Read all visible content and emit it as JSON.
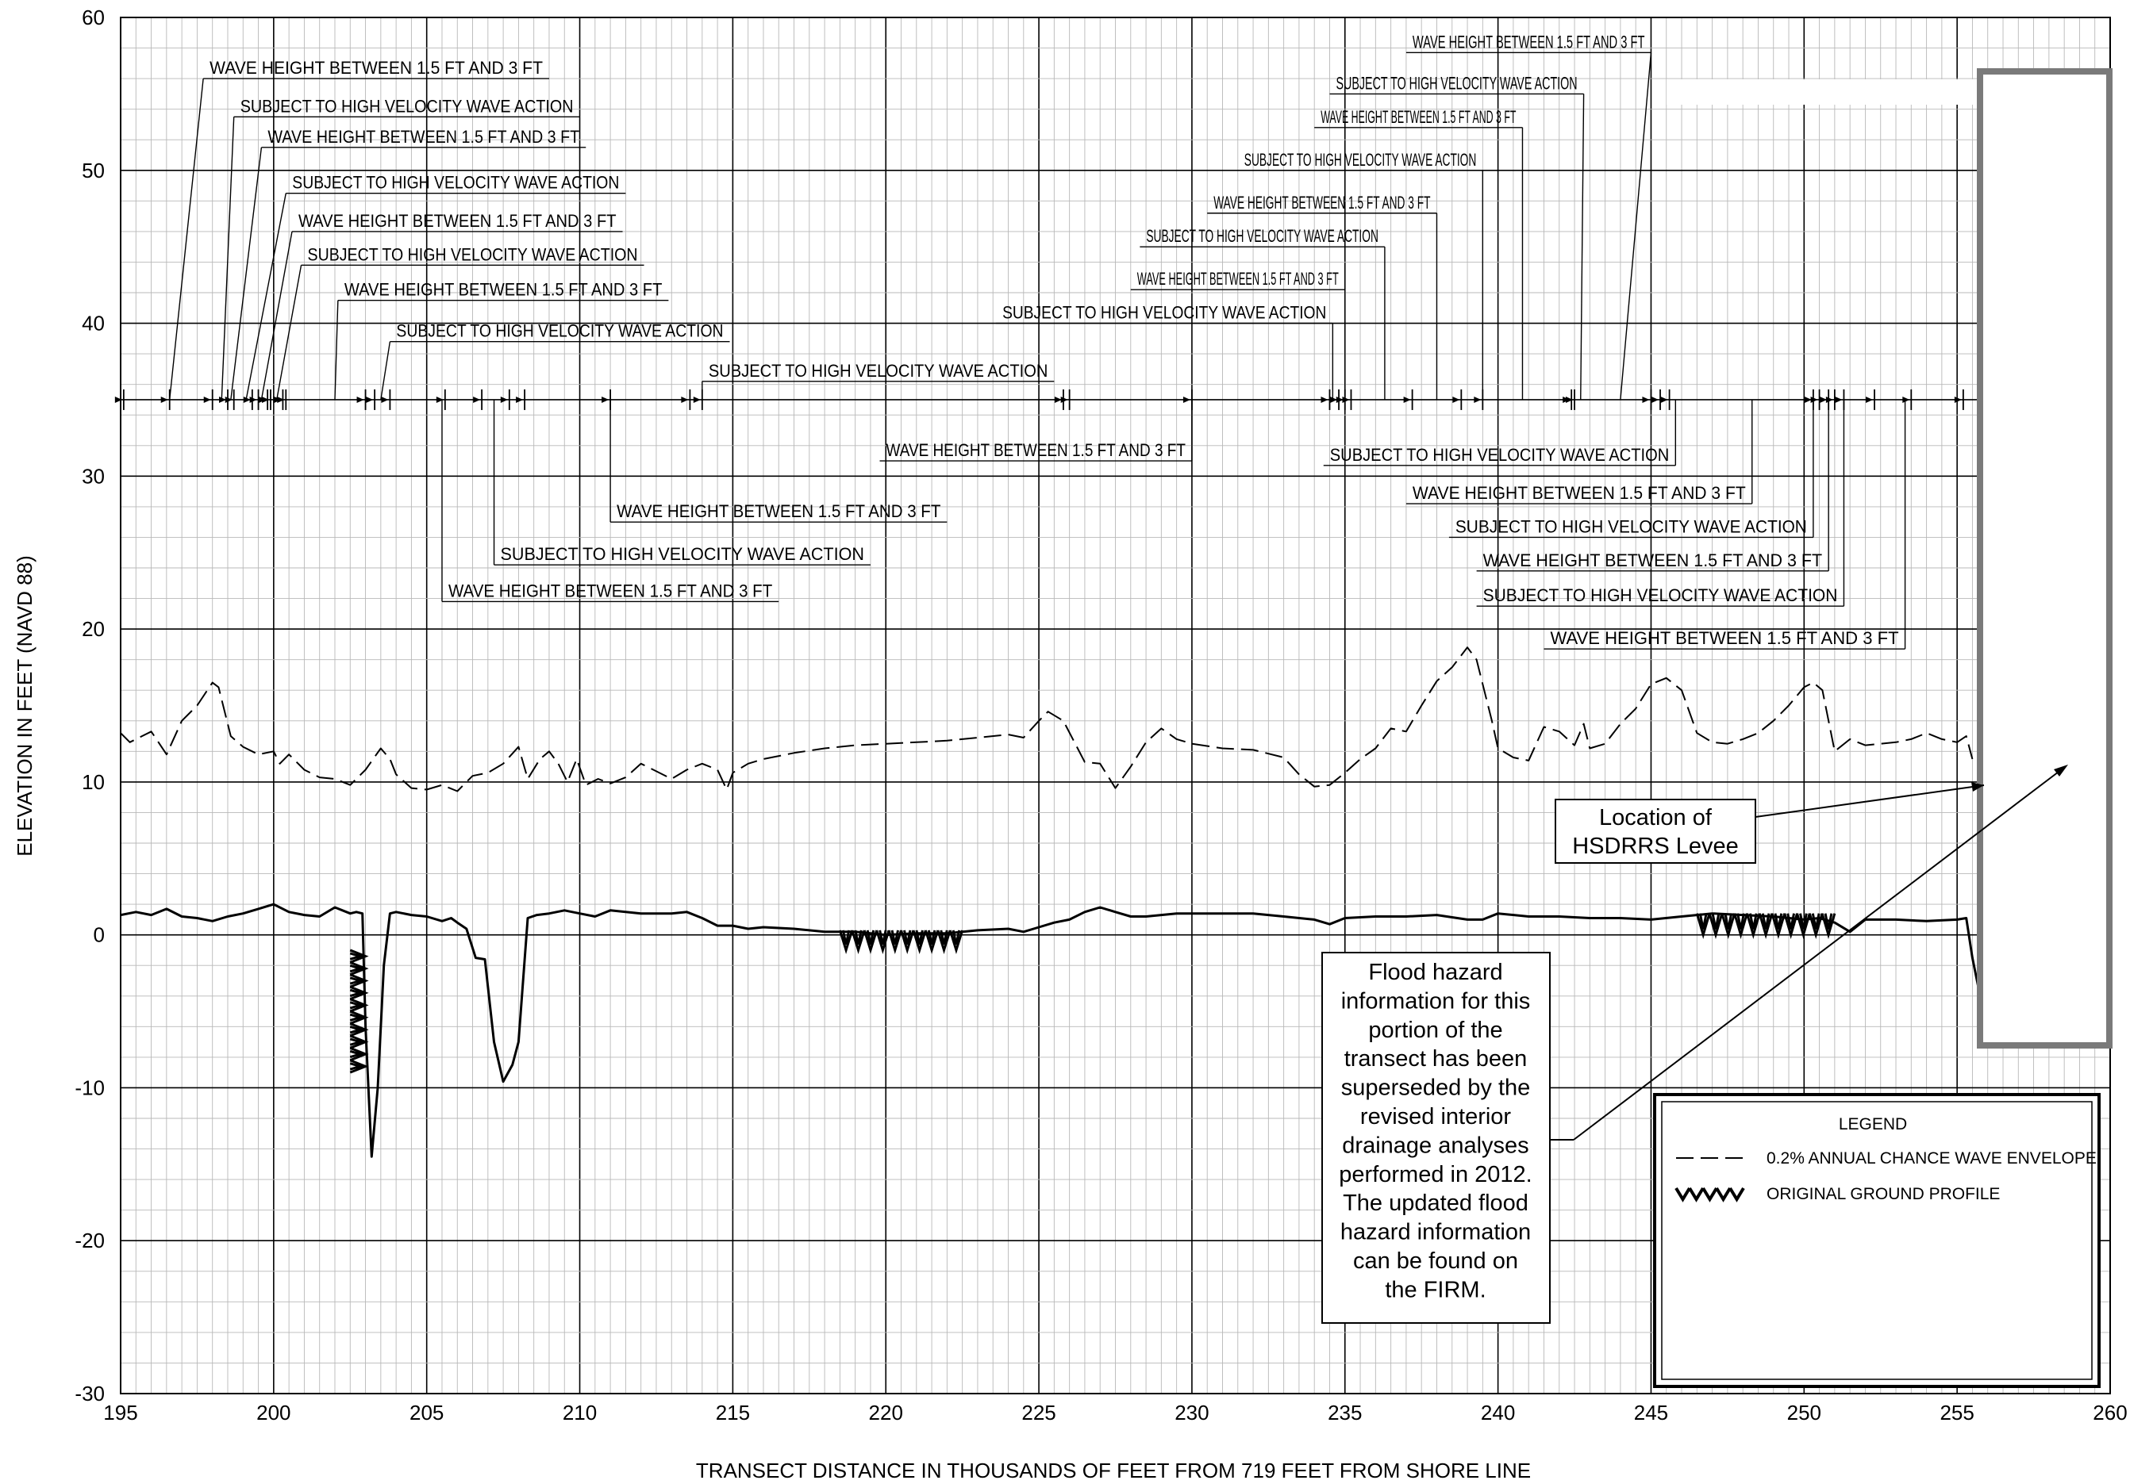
{
  "chart_data": {
    "type": "line",
    "xlabel": "TRANSECT DISTANCE IN THOUSANDS OF FEET FROM 719 FEET FROM SHORE LINE",
    "ylabel": "ELEVATION IN FEET (NAVD 88)",
    "xlim": [
      195,
      260
    ],
    "ylim": [
      -30,
      60
    ],
    "x_ticks": [
      "195",
      "200",
      "205",
      "210",
      "215",
      "220",
      "225",
      "230",
      "235",
      "240",
      "245",
      "250",
      "255",
      "260"
    ],
    "y_ticks": [
      "60",
      "50",
      "40",
      "30",
      "20",
      "10",
      "0",
      "-10",
      "-20",
      "-30"
    ],
    "grid": true,
    "series": [
      {
        "name": "0.2% ANNUAL CHANCE WAVE ENVELOPE",
        "style": "dashed",
        "x": [
          195.0,
          195.3,
          196.0,
          196.5,
          197.0,
          197.5,
          198.0,
          198.2,
          198.6,
          199.0,
          199.5,
          200.0,
          200.2,
          200.5,
          201.0,
          201.5,
          202.0,
          202.5,
          203.0,
          203.5,
          203.8,
          204.0,
          204.5,
          205.0,
          205.5,
          206.0,
          206.5,
          207.0,
          207.5,
          208.0,
          208.3,
          208.7,
          209.0,
          209.3,
          209.6,
          209.9,
          210.2,
          210.6,
          211.0,
          211.5,
          212.0,
          212.5,
          213.0,
          213.5,
          214.0,
          214.5,
          214.8,
          215.0,
          215.5,
          216.0,
          217.0,
          218.0,
          219.0,
          220.0,
          221.0,
          222.0,
          223.0,
          224.0,
          224.5,
          225.0,
          225.3,
          225.8,
          226.5,
          227.0,
          227.5,
          228.0,
          228.5,
          229.0,
          229.5,
          230.0,
          231.0,
          232.0,
          233.0,
          233.5,
          234.0,
          234.5,
          235.0,
          235.5,
          236.0,
          236.5,
          237.0,
          237.5,
          238.0,
          238.5,
          239.0,
          239.3,
          239.8,
          240.0,
          240.5,
          241.0,
          241.5,
          242.0,
          242.5,
          242.8,
          243.0,
          243.5,
          244.0,
          244.5,
          245.0,
          245.5,
          246.0,
          246.5,
          247.0,
          247.5,
          248.0,
          248.5,
          249.0,
          249.5,
          250.0,
          250.3,
          250.6,
          251.0,
          251.5,
          252.0,
          252.5,
          253.0,
          253.5,
          254.0,
          254.5,
          255.0,
          255.3,
          255.5
        ],
        "y": [
          13.2,
          12.6,
          13.3,
          11.8,
          14.0,
          15.0,
          16.5,
          16.2,
          13.0,
          12.3,
          11.8,
          12.0,
          11.2,
          11.8,
          10.8,
          10.3,
          10.2,
          9.8,
          10.8,
          12.2,
          11.5,
          10.5,
          9.6,
          9.5,
          9.8,
          9.4,
          10.4,
          10.6,
          11.2,
          12.3,
          10.2,
          11.5,
          12.0,
          11.2,
          10.0,
          11.5,
          9.8,
          10.2,
          9.9,
          10.3,
          11.2,
          10.7,
          10.2,
          10.8,
          11.2,
          10.8,
          9.5,
          10.6,
          11.2,
          11.5,
          11.9,
          12.2,
          12.4,
          12.5,
          12.6,
          12.7,
          12.9,
          13.1,
          12.9,
          14.0,
          14.6,
          14.0,
          11.3,
          11.2,
          9.6,
          11.0,
          12.6,
          13.5,
          12.8,
          12.5,
          12.2,
          12.1,
          11.6,
          10.5,
          9.7,
          9.8,
          10.6,
          11.5,
          12.2,
          13.5,
          13.3,
          15.0,
          16.6,
          17.5,
          18.8,
          18.0,
          14.0,
          12.2,
          11.6,
          11.4,
          13.6,
          13.3,
          12.4,
          13.8,
          12.2,
          12.5,
          13.8,
          14.8,
          16.4,
          16.8,
          16.0,
          13.2,
          12.6,
          12.5,
          12.8,
          13.2,
          14.0,
          15.0,
          16.2,
          16.5,
          16.0,
          12.0,
          12.8,
          12.4,
          12.5,
          12.6,
          12.8,
          13.2,
          12.8,
          12.6,
          13.0,
          11.5
        ]
      },
      {
        "name": "ground profile",
        "style": "solid",
        "x": [
          195.0,
          195.5,
          196.0,
          196.5,
          197.0,
          197.5,
          198.0,
          198.5,
          199.0,
          199.5,
          200.0,
          200.5,
          201.0,
          201.5,
          202.0,
          202.5,
          202.7,
          202.9,
          203.0,
          203.2,
          203.4,
          203.6,
          203.8,
          204.0,
          204.5,
          205.0,
          205.5,
          205.8,
          206.0,
          206.3,
          206.6,
          206.9,
          207.2,
          207.5,
          207.8,
          208.0,
          208.3,
          208.6,
          209.0,
          209.5,
          210.0,
          210.5,
          211.0,
          212.0,
          213.0,
          213.5,
          214.0,
          214.5,
          215.0,
          215.5,
          216.0,
          217.0,
          218.0,
          219.0,
          220.0,
          221.0,
          222.0,
          223.0,
          224.0,
          224.5,
          225.0,
          225.5,
          226.0,
          226.5,
          227.0,
          227.5,
          228.0,
          228.5,
          229.0,
          229.5,
          230.0,
          231.0,
          232.0,
          233.0,
          234.0,
          234.5,
          235.0,
          236.0,
          237.0,
          238.0,
          239.0,
          239.5,
          240.0,
          241.0,
          242.0,
          243.0,
          244.0,
          245.0,
          246.0,
          247.0,
          248.0,
          249.0,
          250.0,
          250.5,
          251.0,
          251.5,
          252.0,
          253.0,
          254.0,
          255.0,
          255.3,
          255.5,
          255.7
        ],
        "y": [
          1.3,
          1.5,
          1.3,
          1.7,
          1.2,
          1.1,
          0.9,
          1.2,
          1.4,
          1.7,
          2.0,
          1.5,
          1.3,
          1.2,
          1.8,
          1.4,
          1.5,
          1.4,
          -6.0,
          -14.5,
          -10.0,
          -2.0,
          1.4,
          1.5,
          1.3,
          1.2,
          0.9,
          1.1,
          0.8,
          0.4,
          -1.5,
          -1.6,
          -7.0,
          -9.6,
          -8.5,
          -7.0,
          1.1,
          1.3,
          1.4,
          1.6,
          1.4,
          1.2,
          1.6,
          1.4,
          1.4,
          1.5,
          1.1,
          0.6,
          0.6,
          0.4,
          0.5,
          0.4,
          0.2,
          0.2,
          0.0,
          0.1,
          0.1,
          0.3,
          0.4,
          0.2,
          0.5,
          0.8,
          1.0,
          1.5,
          1.8,
          1.5,
          1.2,
          1.2,
          1.3,
          1.4,
          1.4,
          1.4,
          1.4,
          1.2,
          1.0,
          0.7,
          1.1,
          1.2,
          1.2,
          1.3,
          1.0,
          1.0,
          1.4,
          1.2,
          1.2,
          1.1,
          1.1,
          1.0,
          1.2,
          1.4,
          1.3,
          1.2,
          1.0,
          1.1,
          0.8,
          0.2,
          1.0,
          1.0,
          0.9,
          1.0,
          1.1,
          -1.5,
          -3.5
        ]
      }
    ],
    "original_ground_profile": [
      {
        "x_start": 202.5,
        "x_end": 203.0,
        "y_top": -1.0,
        "y_bottom": -9.0
      },
      {
        "x_start": 218.5,
        "x_end": 222.5,
        "y_top": 0.3,
        "y_bottom": -1.0
      },
      {
        "x_start": 246.5,
        "x_end": 251.0,
        "y_top": 1.4,
        "y_bottom": 0.0
      }
    ],
    "zone_line_y": 35,
    "zone_boundaries": [
      195.1,
      196.6,
      198.0,
      198.5,
      198.7,
      199.3,
      199.5,
      199.8,
      199.9,
      200.3,
      200.4,
      203.0,
      203.3,
      203.8,
      205.6,
      206.8,
      207.7,
      208.2,
      211.0,
      213.6,
      214.0,
      225.8,
      226.0,
      230.0,
      234.5,
      234.8,
      235.0,
      235.2,
      237.2,
      238.8,
      239.5,
      242.4,
      242.5,
      245.0,
      245.3,
      245.6,
      250.3,
      250.5,
      250.8,
      251.0,
      251.3,
      252.3,
      253.5,
      255.2
    ],
    "annotations": [
      {
        "text": "WAVE HEIGHT BETWEEN 1.5 FT AND 3 FT",
        "x_start": 197.7,
        "x_end": 209.0,
        "y": 56.0,
        "leader_x": 196.6
      },
      {
        "text": "SUBJECT TO HIGH VELOCITY WAVE ACTION",
        "x_start": 198.7,
        "x_end": 210.0,
        "y": 53.5,
        "leader_x": 198.3
      },
      {
        "text": "WAVE HEIGHT BETWEEN 1.5 FT AND 3 FT",
        "x_start": 199.6,
        "x_end": 210.2,
        "y": 51.5,
        "leader_x": 198.6
      },
      {
        "text": "SUBJECT TO HIGH VELOCITY WAVE ACTION",
        "x_start": 200.4,
        "x_end": 211.5,
        "y": 48.5,
        "leader_x": 199.1
      },
      {
        "text": "WAVE HEIGHT BETWEEN 1.5 FT AND 3 FT",
        "x_start": 200.6,
        "x_end": 211.4,
        "y": 46.0,
        "leader_x": 199.6
      },
      {
        "text": "SUBJECT TO HIGH VELOCITY WAVE ACTION",
        "x_start": 200.9,
        "x_end": 212.1,
        "y": 43.8,
        "leader_x": 200.1
      },
      {
        "text": "WAVE HEIGHT BETWEEN 1.5 FT AND 3 FT",
        "x_start": 202.1,
        "x_end": 212.9,
        "y": 41.5,
        "leader_x": 202.0
      },
      {
        "text": "SUBJECT TO HIGH VELOCITY WAVE ACTION",
        "x_start": 203.8,
        "x_end": 214.9,
        "y": 38.8,
        "leader_x": 203.5
      },
      {
        "text": "SUBJECT TO HIGH VELOCITY WAVE ACTION",
        "x_start": 214.0,
        "x_end": 225.5,
        "y": 36.2,
        "leader_x": 214.0
      },
      {
        "text": "WAVE HEIGHT BETWEEN 1.5 FT AND 3 FT",
        "x_start": 219.8,
        "x_end": 230.0,
        "y": 31.0,
        "leader_x": 230.0
      },
      {
        "text": "WAVE HEIGHT BETWEEN 1.5 FT AND 3 FT",
        "x_start": 211.0,
        "x_end": 222.0,
        "y": 27.0,
        "leader_x": 211.0
      },
      {
        "text": "SUBJECT TO HIGH VELOCITY WAVE ACTION",
        "x_start": 207.2,
        "x_end": 219.5,
        "y": 24.2,
        "leader_x": 207.2
      },
      {
        "text": "WAVE HEIGHT BETWEEN 1.5 FT AND 3 FT",
        "x_start": 205.5,
        "x_end": 216.5,
        "y": 21.8,
        "leader_x": 205.5
      },
      {
        "text": "WAVE HEIGHT BETWEEN 1.5 FT AND 3 FT",
        "x_start": 237.0,
        "x_end": 245.0,
        "y": 57.7,
        "leader_x": 244.0
      },
      {
        "text": "SUBJECT TO HIGH VELOCITY WAVE ACTION",
        "x_start": 234.5,
        "x_end": 242.8,
        "y": 55.0,
        "leader_x": 242.7
      },
      {
        "text": "WAVE HEIGHT BETWEEN 1.5 FT AND 3 FT",
        "x_start": 234.0,
        "x_end": 240.8,
        "y": 52.8,
        "leader_x": 240.8
      },
      {
        "text": "SUBJECT TO HIGH VELOCITY WAVE ACTION",
        "x_start": 231.5,
        "x_end": 239.5,
        "y": 50.0,
        "leader_x": 239.5
      },
      {
        "text": "WAVE HEIGHT BETWEEN 1.5 FT AND 3 FT",
        "x_start": 230.5,
        "x_end": 238.0,
        "y": 47.2,
        "leader_x": 238.0
      },
      {
        "text": "SUBJECT TO HIGH VELOCITY WAVE ACTION",
        "x_start": 228.3,
        "x_end": 236.3,
        "y": 45.0,
        "leader_x": 236.3
      },
      {
        "text": "WAVE HEIGHT BETWEEN 1.5 FT AND 3 FT",
        "x_start": 228.0,
        "x_end": 235.0,
        "y": 42.2,
        "leader_x": 235.0
      },
      {
        "text": "SUBJECT TO HIGH VELOCITY WAVE ACTION",
        "x_start": 223.6,
        "x_end": 234.6,
        "y": 40.0,
        "leader_x": 234.6
      },
      {
        "text": "SUBJECT TO HIGH VELOCITY WAVE ACTION",
        "x_start": 234.3,
        "x_end": 245.8,
        "y": 30.7,
        "leader_x": 245.8
      },
      {
        "text": "WAVE HEIGHT BETWEEN 1.5 FT AND 3 FT",
        "x_start": 237.0,
        "x_end": 248.3,
        "y": 28.2,
        "leader_x": 248.3
      },
      {
        "text": "SUBJECT TO HIGH VELOCITY WAVE ACTION",
        "x_start": 238.4,
        "x_end": 250.3,
        "y": 26.0,
        "leader_x": 250.3
      },
      {
        "text": "WAVE HEIGHT BETWEEN 1.5 FT AND 3 FT",
        "x_start": 239.3,
        "x_end": 250.8,
        "y": 23.8,
        "leader_x": 250.8
      },
      {
        "text": "SUBJECT TO HIGH VELOCITY WAVE ACTION",
        "x_start": 239.3,
        "x_end": 251.3,
        "y": 21.5,
        "leader_x": 251.3
      },
      {
        "text": "WAVE HEIGHT BETWEEN 1.5 FT AND 3 FT",
        "x_start": 241.5,
        "x_end": 253.3,
        "y": 18.7,
        "leader_x": 253.3
      }
    ],
    "callouts": {
      "levee": {
        "lines": [
          "Location of",
          "HSDRRS Levee"
        ]
      },
      "flood": {
        "lines": [
          "Flood hazard",
          "information for this",
          "portion of the",
          "transect has been",
          "superseded by the",
          "revised interior",
          "drainage analyses",
          "performed in 2012.",
          "The updated flood",
          "hazard information",
          "can be found on",
          "the FIRM."
        ]
      }
    },
    "legend": {
      "title": "LEGEND",
      "placement": "bottom-right",
      "entries": [
        {
          "label": "0.2% ANNUAL CHANCE WAVE ENVELOPE",
          "style": "dashed"
        },
        {
          "label": "ORIGINAL GROUND PROFILE",
          "style": "hatch"
        }
      ]
    }
  }
}
